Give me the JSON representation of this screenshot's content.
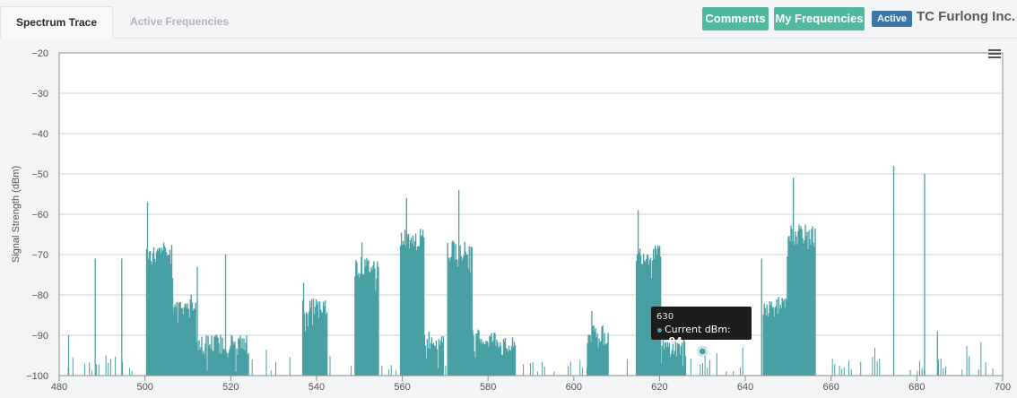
{
  "tabs": [
    {
      "label": "Spectrum Trace",
      "active": true
    },
    {
      "label": "Active Frequencies",
      "active": false
    }
  ],
  "header": {
    "comments_label": "Comments",
    "my_frequencies_label": "My Frequencies",
    "status_badge": "Active",
    "company_name": "TC Furlong Inc."
  },
  "icons": {
    "chart_menu": "hamburger-menu-icon"
  },
  "colors": {
    "series": "#48a0a4",
    "button_bg": "#4fb9a0",
    "badge_bg": "#3a77a8",
    "tooltip_bg": "#1c1c1c"
  },
  "tooltip": {
    "x_label": "630",
    "series_label": "Current dBm:",
    "value_label": "-94"
  },
  "chart_data": {
    "type": "area",
    "title": "",
    "xlabel": "",
    "ylabel": "Signal Strength (dBm)",
    "xlim": [
      480,
      700
    ],
    "ylim": [
      -100,
      -20
    ],
    "x_ticks": [
      480,
      500,
      520,
      540,
      560,
      580,
      600,
      620,
      640,
      660,
      680,
      700
    ],
    "y_ticks": [
      -20,
      -30,
      -40,
      -50,
      -60,
      -70,
      -80,
      -90,
      -100
    ],
    "grid": true,
    "legend": "none",
    "series": [
      {
        "name": "Current dBm",
        "blocks": [
          {
            "x": [
              500.4,
              506.6
            ],
            "level": -70
          },
          {
            "x": [
              506.6,
              512.0
            ],
            "level": -82
          },
          {
            "x": [
              512.0,
              524.2
            ],
            "level": -92
          },
          {
            "x": [
              536.8,
              542.6
            ],
            "level": -83
          },
          {
            "x": [
              549.0,
              554.6
            ],
            "level": -73
          },
          {
            "x": [
              559.6,
              565.2
            ],
            "level": -66
          },
          {
            "x": [
              565.2,
              569.8
            ],
            "level": -91
          },
          {
            "x": [
              570.6,
              576.4
            ],
            "level": -69
          },
          {
            "x": [
              576.4,
              583.0
            ],
            "level": -91
          },
          {
            "x": [
              583.0,
              586.4
            ],
            "level": -93
          },
          {
            "x": [
              603.2,
              608.2
            ],
            "level": -90
          },
          {
            "x": [
              614.6,
              620.4
            ],
            "level": -70
          },
          {
            "x": [
              620.4,
              626.2
            ],
            "level": -93
          },
          {
            "x": [
              644.2,
              649.8
            ],
            "level": -83
          },
          {
            "x": [
              649.8,
              656.4
            ],
            "level": -65
          }
        ],
        "spikes": [
          {
            "x": 482.2,
            "y": -90
          },
          {
            "x": 488.4,
            "y": -71
          },
          {
            "x": 494.6,
            "y": -71
          },
          {
            "x": 500.6,
            "y": -57
          },
          {
            "x": 504.4,
            "y": -67
          },
          {
            "x": 512.2,
            "y": -73
          },
          {
            "x": 518.8,
            "y": -70
          },
          {
            "x": 537.0,
            "y": -77
          },
          {
            "x": 550.6,
            "y": -67
          },
          {
            "x": 561.0,
            "y": -56
          },
          {
            "x": 573.2,
            "y": -54
          },
          {
            "x": 604.2,
            "y": -84
          },
          {
            "x": 615.0,
            "y": -59
          },
          {
            "x": 643.8,
            "y": -71
          },
          {
            "x": 651.2,
            "y": -51
          },
          {
            "x": 674.6,
            "y": -48
          },
          {
            "x": 681.8,
            "y": -50
          },
          {
            "x": 684.8,
            "y": -89
          }
        ],
        "highlight_point": {
          "x": 630,
          "y": -94
        }
      }
    ]
  }
}
